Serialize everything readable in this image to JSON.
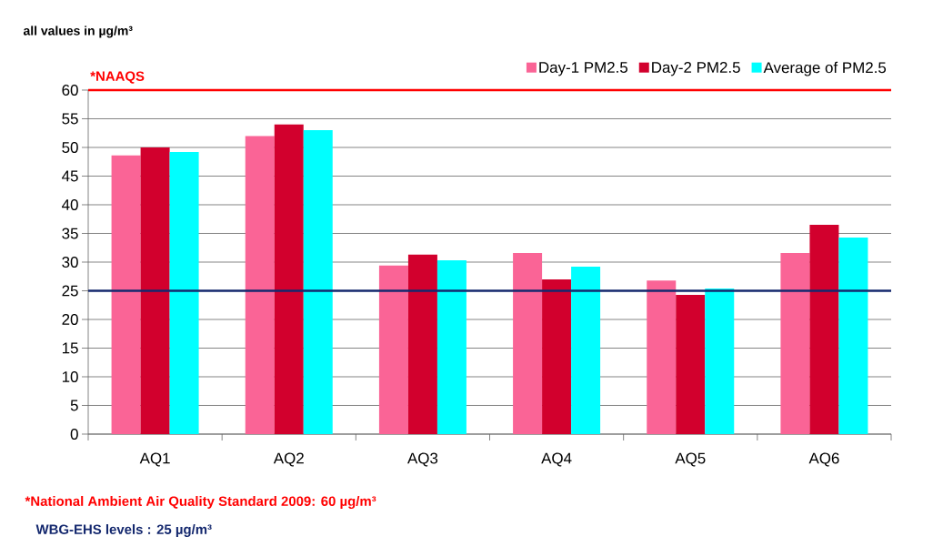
{
  "chart_data": {
    "type": "bar",
    "categories": [
      "AQ1",
      "AQ2",
      "AQ3",
      "AQ4",
      "AQ5",
      "AQ6"
    ],
    "series": [
      {
        "name": "Day-1 PM2.5",
        "color": "#fa6496",
        "values": [
          48.6,
          52,
          29.4,
          31.6,
          26.8,
          31.6
        ]
      },
      {
        "name": "Day-2 PM2.5",
        "color": "#d2002d",
        "values": [
          50,
          54,
          31.3,
          27,
          24.3,
          36.5
        ]
      },
      {
        "name": "Average of PM2.5",
        "color": "#00ffff",
        "values": [
          49.2,
          53,
          30.3,
          29.2,
          25.4,
          34.3
        ]
      }
    ],
    "ylim": [
      0,
      60
    ],
    "yticks": [
      0,
      5,
      10,
      15,
      20,
      25,
      30,
      35,
      40,
      45,
      50,
      55,
      60
    ],
    "grid": "y",
    "legend": "top right",
    "ref_lines": [
      {
        "axis": "y",
        "value": 60,
        "label": "*NAAQS",
        "color": "#ff0000"
      },
      {
        "axis": "y",
        "value": 25,
        "color": "#14286e"
      }
    ],
    "annotations": [
      "all values in  µg/m³",
      "*National Ambient Air Quality Standard 2009: 60 µg/m³",
      "WBG-EHS levels : 25 µg/m³"
    ]
  }
}
